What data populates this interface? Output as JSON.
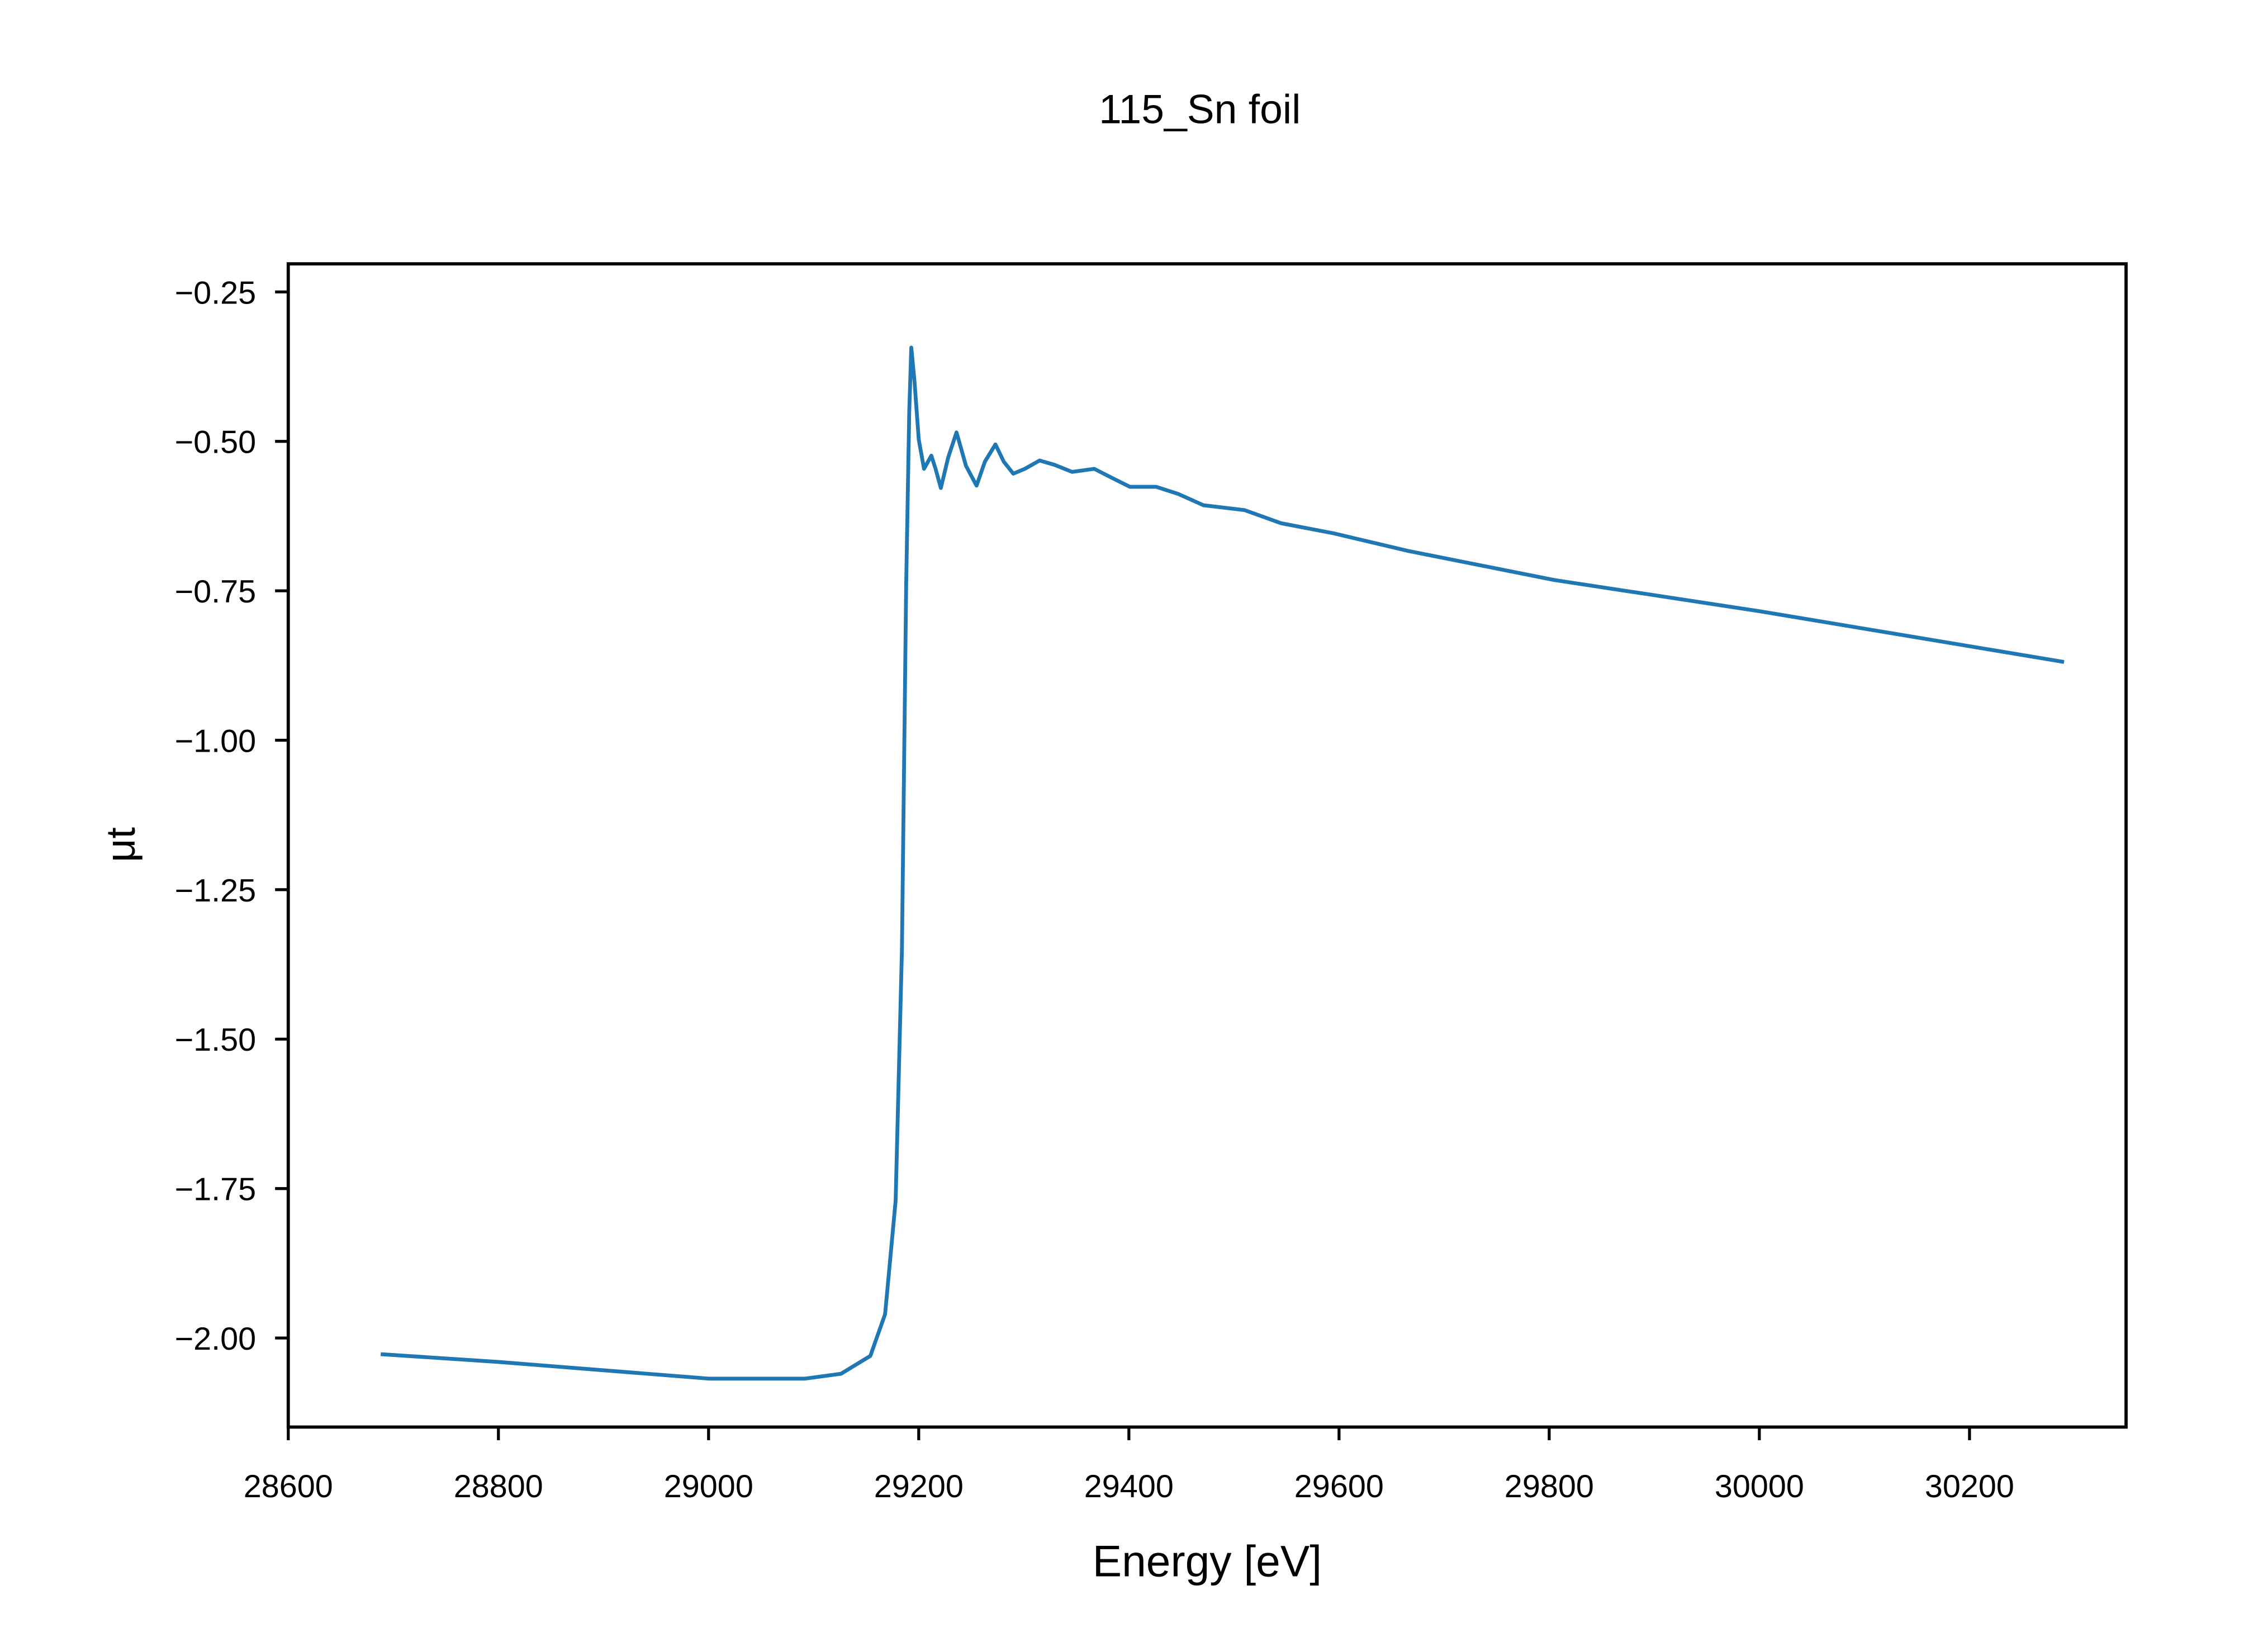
{
  "chart_data": {
    "type": "line",
    "title": "115_Sn foil",
    "xlabel": "Energy [eV]",
    "ylabel": "μt",
    "xlim": [
      28600,
      30349
    ],
    "ylim": [
      -2.149,
      -0.203
    ],
    "xticks": [
      28600,
      28800,
      29000,
      29200,
      29400,
      29600,
      29800,
      30000,
      30200
    ],
    "xtick_labels": [
      "28600",
      "28800",
      "29000",
      "29200",
      "29400",
      "29600",
      "29800",
      "30000",
      "30200"
    ],
    "yticks": [
      -0.25,
      -0.5,
      -0.75,
      -1.0,
      -1.25,
      -1.5,
      -1.75,
      -2.0
    ],
    "ytick_labels": [
      "−0.25",
      "−0.50",
      "−0.75",
      "−1.00",
      "−1.25",
      "−1.50",
      "−1.75",
      "−2.00"
    ],
    "grid": false,
    "series": [
      {
        "name": "115_Sn foil",
        "color": "#1f77b4",
        "x": [
          28688,
          28800,
          29000,
          29092,
          29126,
          29154,
          29168,
          29178,
          29184,
          29188,
          29191,
          29193,
          29196,
          29200,
          29205,
          29212,
          29216,
          29221,
          29228,
          29236,
          29245,
          29255,
          29263,
          29273,
          29281,
          29290,
          29301,
          29315,
          29329,
          29346,
          29367,
          29384,
          29401,
          29426,
          29447,
          29471,
          29510,
          29545,
          29595,
          29665,
          29805,
          30000,
          30290
        ],
        "y": [
          -2.027,
          -2.04,
          -2.068,
          -2.068,
          -2.06,
          -2.03,
          -1.96,
          -1.77,
          -1.35,
          -0.74,
          -0.45,
          -0.343,
          -0.4,
          -0.497,
          -0.546,
          -0.524,
          -0.546,
          -0.578,
          -0.527,
          -0.485,
          -0.541,
          -0.574,
          -0.534,
          -0.505,
          -0.534,
          -0.554,
          -0.546,
          -0.532,
          -0.539,
          -0.551,
          -0.546,
          -0.561,
          -0.576,
          -0.576,
          -0.588,
          -0.607,
          -0.615,
          -0.637,
          -0.654,
          -0.683,
          -0.732,
          -0.784,
          -0.869
        ]
      }
    ]
  }
}
